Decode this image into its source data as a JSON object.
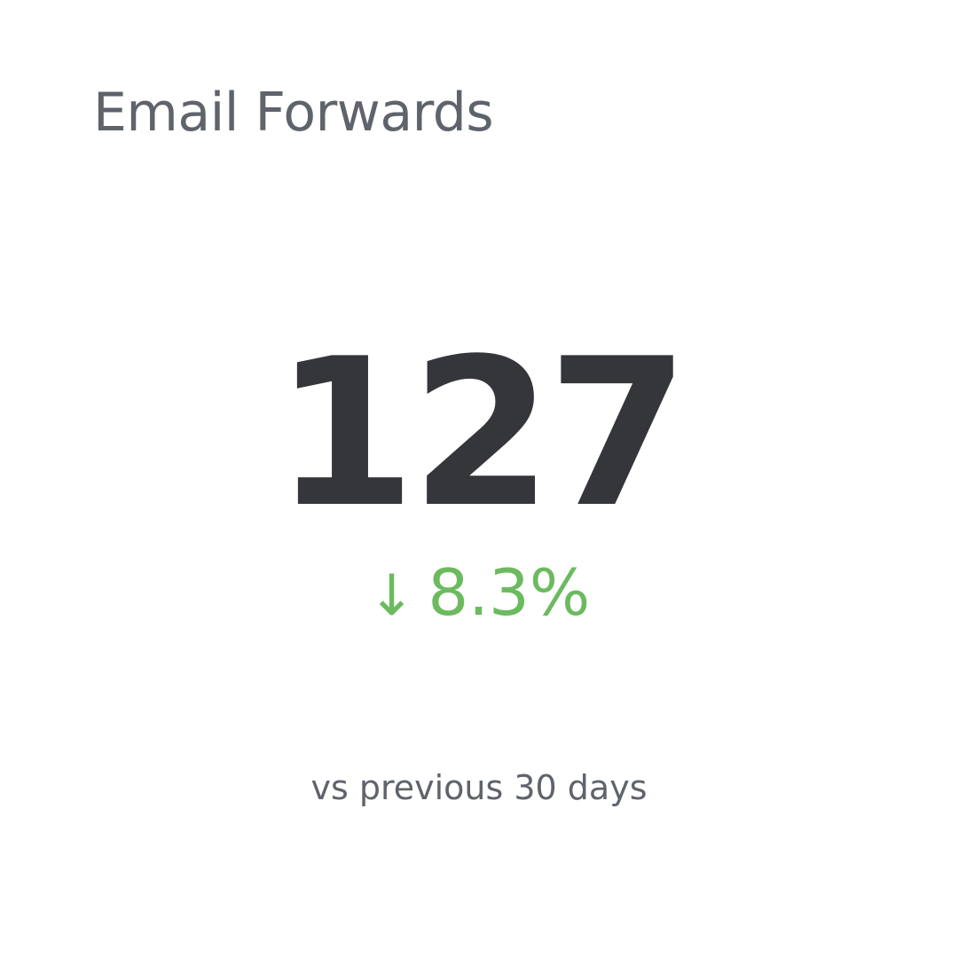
{
  "widget": {
    "title": "Email Forwards",
    "value": "127",
    "change": {
      "direction": "down",
      "arrow": "↓",
      "percent": "8.3%",
      "color": "#6cba5f"
    },
    "comparison": "vs previous 30 days"
  }
}
